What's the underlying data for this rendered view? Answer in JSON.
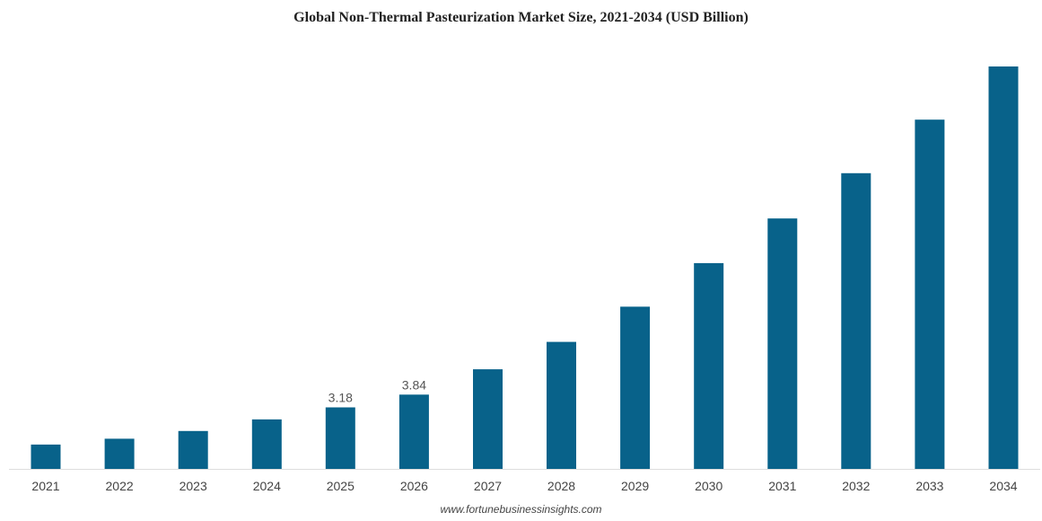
{
  "chart_data": {
    "type": "bar",
    "title": "Global Non-Thermal Pasteurization Market Size, 2021-2034 (USD Billion)",
    "xlabel": "",
    "ylabel": "",
    "categories": [
      "2021",
      "2022",
      "2023",
      "2024",
      "2025",
      "2026",
      "2027",
      "2028",
      "2029",
      "2030",
      "2031",
      "2032",
      "2033",
      "2034"
    ],
    "values": [
      1.26,
      1.56,
      1.96,
      2.56,
      3.18,
      3.84,
      5.15,
      6.57,
      8.39,
      10.64,
      12.95,
      15.29,
      18.06,
      20.81
    ],
    "data_labels": [
      {
        "category": "2025",
        "text": "3.18"
      },
      {
        "category": "2026",
        "text": "3.84"
      }
    ],
    "ylim": [
      0,
      21
    ],
    "grid": false,
    "legend": "none",
    "bar_color": "#08628a"
  },
  "source_text": "www.fortunebusinessinsights.com"
}
